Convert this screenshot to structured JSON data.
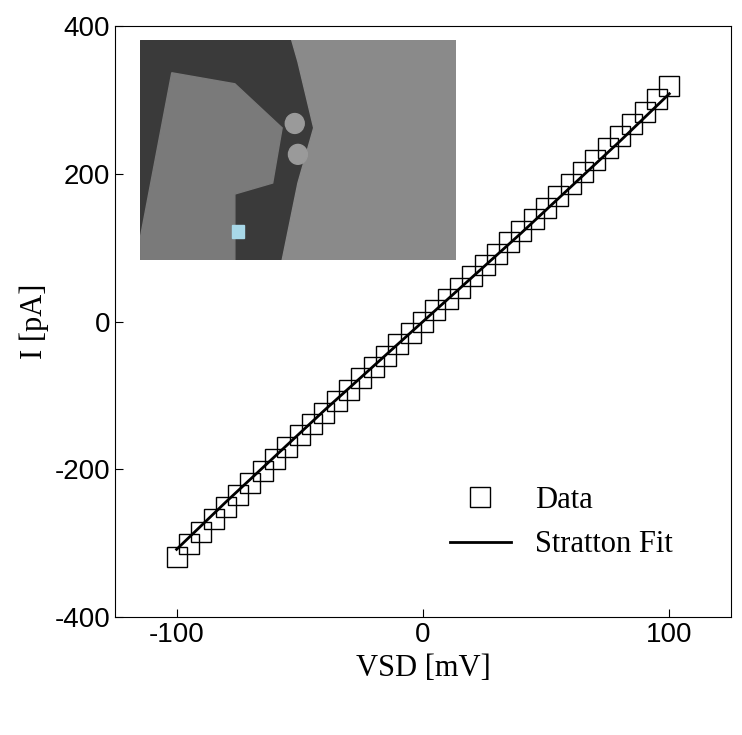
{
  "chart_data": {
    "type": "scatter",
    "x_label": "VSD [mV]",
    "y_label": "I [pA]",
    "xlim": [
      -125,
      125
    ],
    "xticks": [
      -100,
      0,
      100
    ],
    "ylim": [
      -400,
      400
    ],
    "yticks": [
      -400,
      -200,
      0,
      200,
      400
    ],
    "legend": "lower right",
    "grid": false,
    "series": [
      {
        "name": "Data",
        "type": "scatter",
        "marker": "square",
        "color": "#000000",
        "x": [
          -100,
          -95,
          -90,
          -85,
          -80,
          -75,
          -70,
          -65,
          -60,
          -55,
          -50,
          -45,
          -40,
          -35,
          -30,
          -25,
          -20,
          -15,
          -10,
          -5,
          0,
          5,
          10,
          15,
          20,
          25,
          30,
          35,
          40,
          45,
          50,
          55,
          60,
          65,
          70,
          75,
          80,
          85,
          90,
          95,
          100
        ],
        "values": [
          -318,
          -301,
          -284,
          -267,
          -251,
          -234,
          -218,
          -202,
          -186,
          -170,
          -154,
          -138,
          -123,
          -107,
          -92,
          -76,
          -61,
          -46,
          -31,
          -15,
          0,
          15,
          31,
          46,
          61,
          76,
          92,
          107,
          123,
          138,
          154,
          170,
          186,
          202,
          218,
          234,
          251,
          267,
          284,
          301,
          318
        ]
      },
      {
        "name": "Stratton Fit",
        "type": "line",
        "line_style": "solid",
        "color": "#000000",
        "x": [
          -100,
          -80,
          -60,
          -40,
          -20,
          0,
          20,
          40,
          60,
          80,
          100
        ],
        "values": [
          -308,
          -244,
          -182,
          -120,
          -60,
          0,
          60,
          120,
          182,
          244,
          308
        ]
      }
    ]
  }
}
